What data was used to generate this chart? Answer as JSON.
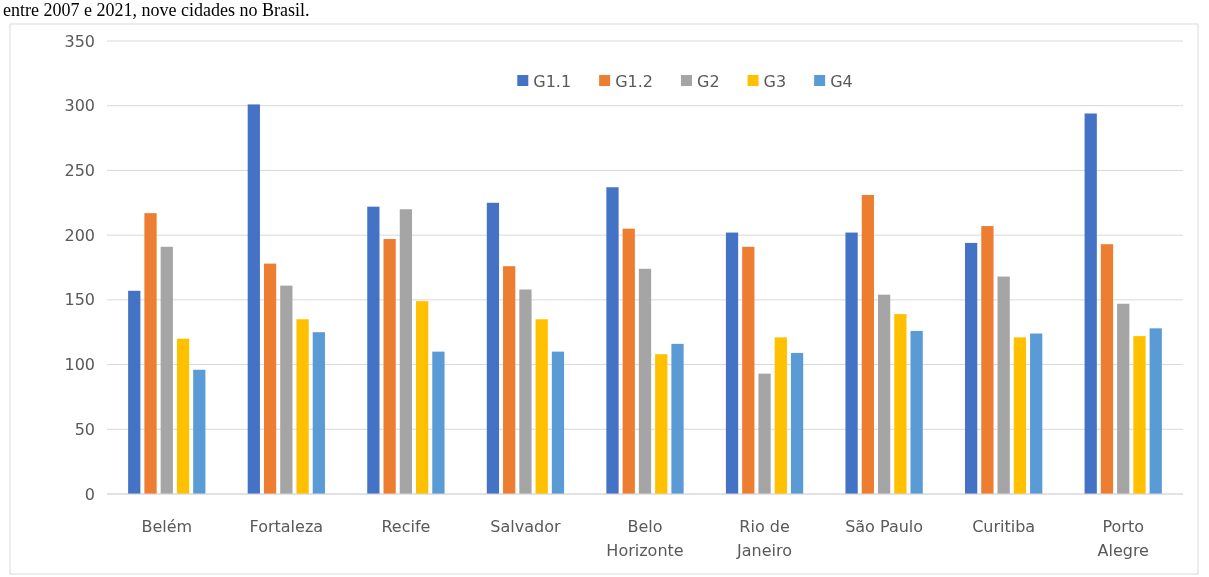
{
  "chart_data": {
    "type": "bar",
    "title": "entre 2007 e 2021, nove cidades no Brasil.",
    "categories": [
      "Belém",
      "Fortaleza",
      "Recife",
      "Salvador",
      "Belo Horizonte",
      "Rio de Janeiro",
      "São Paulo",
      "Curitiba",
      "Porto Alegre"
    ],
    "series": [
      {
        "name": "G1.1",
        "color": "#4472c4",
        "values": [
          157,
          301,
          222,
          225,
          237,
          202,
          202,
          194,
          294
        ]
      },
      {
        "name": "G1.2",
        "color": "#ed7d31",
        "values": [
          217,
          178,
          197,
          176,
          205,
          191,
          231,
          207,
          193
        ]
      },
      {
        "name": "G2",
        "color": "#a5a5a5",
        "values": [
          191,
          161,
          220,
          158,
          174,
          93,
          154,
          168,
          147
        ]
      },
      {
        "name": "G3",
        "color": "#ffc000",
        "values": [
          120,
          135,
          149,
          135,
          108,
          121,
          139,
          121,
          122
        ]
      },
      {
        "name": "G4",
        "color": "#5b9bd5",
        "values": [
          96,
          125,
          110,
          110,
          116,
          109,
          126,
          124,
          128
        ]
      }
    ],
    "ylim": [
      0,
      350
    ],
    "yticks": [
      0,
      50,
      100,
      150,
      200,
      250,
      300,
      350
    ],
    "grid": "y",
    "legend": "top"
  }
}
